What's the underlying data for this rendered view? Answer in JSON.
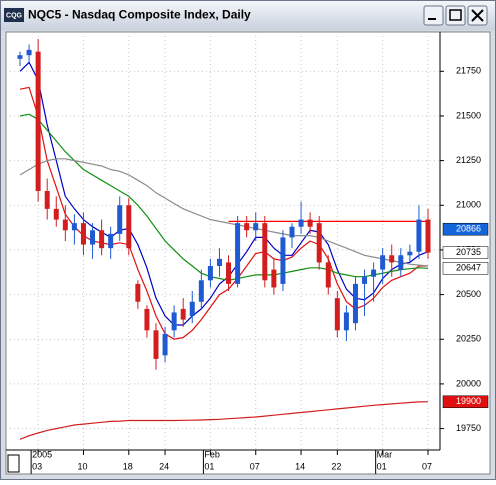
{
  "chart_data": {
    "type": "candlestick",
    "title": "NQC5 - Nasdaq Composite Index, Daily",
    "app_icon": "CQG",
    "categories": [
      null,
      null,
      "03",
      null,
      null,
      null,
      null,
      "10",
      null,
      null,
      null,
      null,
      "18",
      null,
      null,
      null,
      "24",
      null,
      null,
      null,
      null,
      "01",
      null,
      null,
      null,
      null,
      "07",
      null,
      null,
      null,
      null,
      "14",
      null,
      null,
      null,
      "22",
      null,
      null,
      null,
      null,
      "01",
      null,
      null,
      null,
      null,
      "07"
    ],
    "period_labels": [
      null,
      null,
      "2005",
      null,
      null,
      null,
      null,
      null,
      null,
      null,
      null,
      null,
      null,
      null,
      null,
      null,
      null,
      null,
      null,
      null,
      null,
      "Feb",
      null,
      null,
      null,
      null,
      null,
      null,
      null,
      null,
      null,
      null,
      null,
      null,
      null,
      null,
      null,
      null,
      null,
      null,
      "Mar",
      null,
      null,
      null,
      null,
      null
    ],
    "open": [
      21820,
      21840,
      21860,
      21080,
      20980,
      20920,
      20860,
      20900,
      20780,
      20860,
      20760,
      20840,
      21000,
      20560,
      20420,
      20300,
      20160,
      20300,
      20420,
      20380,
      20460,
      20580,
      20660,
      20680,
      20560,
      20900,
      20860,
      20900,
      20640,
      20560,
      20820,
      20880,
      20920,
      20900,
      20680,
      20480,
      20300,
      20340,
      20560,
      20600,
      20640,
      20720,
      20640,
      20720,
      20740,
      20920
    ],
    "high": [
      21860,
      21900,
      21930,
      21150,
      21050,
      21000,
      20950,
      20960,
      20900,
      20920,
      20880,
      21050,
      21040,
      20580,
      20440,
      20340,
      20320,
      20440,
      20480,
      20520,
      20640,
      20700,
      20760,
      20720,
      20940,
      20940,
      20960,
      20940,
      20700,
      20860,
      20900,
      21020,
      20960,
      20940,
      20720,
      20520,
      20440,
      20600,
      20640,
      20680,
      20760,
      20780,
      20760,
      20780,
      21000,
      20980
    ],
    "low": [
      21780,
      21800,
      21020,
      20920,
      20880,
      20800,
      20780,
      20720,
      20700,
      20720,
      20700,
      20800,
      20720,
      20420,
      20260,
      20080,
      20120,
      20260,
      20320,
      20340,
      20420,
      20540,
      20600,
      20520,
      20540,
      20820,
      20800,
      20540,
      20500,
      20520,
      20760,
      20840,
      20840,
      20640,
      20500,
      20260,
      20240,
      20300,
      20380,
      20460,
      20560,
      20600,
      20600,
      20680,
      20700,
      20700
    ],
    "close": [
      21840,
      21870,
      21080,
      20980,
      20920,
      20860,
      20900,
      20780,
      20860,
      20760,
      20840,
      21000,
      20760,
      20460,
      20300,
      20140,
      20280,
      20400,
      20360,
      20460,
      20580,
      20660,
      20700,
      20560,
      20900,
      20860,
      20900,
      20580,
      20540,
      20820,
      20880,
      20920,
      20880,
      20680,
      20540,
      20300,
      20400,
      20560,
      20600,
      20640,
      20720,
      20680,
      20720,
      20740,
      20920,
      20735
    ],
    "up_color": "#1e5ad2",
    "down_color": "#d21e1e",
    "lines": [
      {
        "color": "#0000c8",
        "values": [
          21750,
          21800,
          21700,
          21450,
          21250,
          21050,
          20980,
          20920,
          20880,
          20850,
          20820,
          20860,
          20870,
          20780,
          20650,
          20480,
          20380,
          20330,
          20330,
          20380,
          20420,
          20480,
          20560,
          20600,
          20670,
          20740,
          20820,
          20820,
          20760,
          20720,
          20720,
          20790,
          20860,
          20850,
          20780,
          20640,
          20530,
          20480,
          20470,
          20510,
          20590,
          20640,
          20670,
          20680,
          20720,
          20740
        ]
      },
      {
        "color": "#e01010",
        "values": [
          21650,
          21660,
          21500,
          21250,
          21100,
          20950,
          20880,
          20830,
          20800,
          20790,
          20780,
          20790,
          20780,
          20640,
          20520,
          20380,
          20280,
          20250,
          20260,
          20300,
          20360,
          20430,
          20500,
          20530,
          20590,
          20660,
          20730,
          20740,
          20700,
          20690,
          20710,
          20760,
          20800,
          20780,
          20700,
          20560,
          20460,
          20420,
          20440,
          20480,
          20540,
          20580,
          20600,
          20620,
          20660,
          20660
        ]
      },
      {
        "color": "#109010",
        "values": [
          21500,
          21510,
          21480,
          21420,
          21360,
          21300,
          21250,
          21200,
          21170,
          21140,
          21110,
          21080,
          21050,
          21000,
          20940,
          20870,
          20800,
          20750,
          20700,
          20660,
          20620,
          20600,
          20590,
          20580,
          20590,
          20600,
          20610,
          20610,
          20610,
          20620,
          20630,
          20640,
          20650,
          20650,
          20640,
          20620,
          20610,
          20600,
          20600,
          20610,
          20620,
          20630,
          20640,
          20645,
          20650,
          20647
        ]
      },
      {
        "color": "#8c8c8c",
        "values": [
          21170,
          21200,
          21230,
          21250,
          21260,
          21260,
          21250,
          21240,
          21230,
          21220,
          21200,
          21190,
          21170,
          21140,
          21110,
          21070,
          21040,
          21010,
          20980,
          20960,
          20940,
          20920,
          20910,
          20900,
          20890,
          20880,
          20870,
          20860,
          20850,
          20840,
          20830,
          20830,
          20830,
          20820,
          20800,
          20780,
          20760,
          20740,
          20720,
          20710,
          20700,
          20690,
          20680,
          20670,
          20665,
          20660
        ]
      },
      {
        "color": "#d21e1e",
        "values": [
          19690,
          19710,
          19725,
          19740,
          19750,
          19760,
          19770,
          19775,
          19780,
          19785,
          19790,
          19792,
          19795,
          19795,
          19795,
          19795,
          19795,
          19795,
          19796,
          19797,
          19798,
          19800,
          19802,
          19805,
          19808,
          19812,
          19815,
          19820,
          19825,
          19830,
          19835,
          19840,
          19845,
          19850,
          19855,
          19860,
          19865,
          19870,
          19875,
          19880,
          19884,
          19888,
          19892,
          19896,
          19899,
          19900
        ]
      },
      {
        "color": "#ff0000",
        "values": [
          null,
          null,
          null,
          null,
          null,
          null,
          null,
          null,
          null,
          null,
          null,
          null,
          null,
          null,
          null,
          null,
          null,
          null,
          null,
          null,
          null,
          null,
          null,
          20910,
          20910,
          20910,
          20910,
          20910,
          20910,
          20910,
          20910,
          20910,
          20910,
          20910,
          20910,
          20910,
          20910,
          20910,
          20910,
          20910,
          20910,
          20910,
          20910,
          20910,
          20910,
          20910
        ]
      }
    ],
    "price_labels": [
      {
        "value": 20866,
        "bg": "#1464dc",
        "color": "#ffffff"
      },
      {
        "value": 20735,
        "bg": "#ffffff",
        "color": "#000000"
      },
      {
        "value": 20647,
        "bg": "#ffffff",
        "color": "#000000"
      },
      {
        "value": 19900,
        "bg": "#e01010",
        "color": "#ffffff"
      }
    ],
    "ylim": [
      19630,
      21970
    ],
    "yticks": [
      19750,
      20000,
      20250,
      20500,
      20750,
      21000,
      21250,
      21500,
      21750
    ],
    "grid": true
  }
}
